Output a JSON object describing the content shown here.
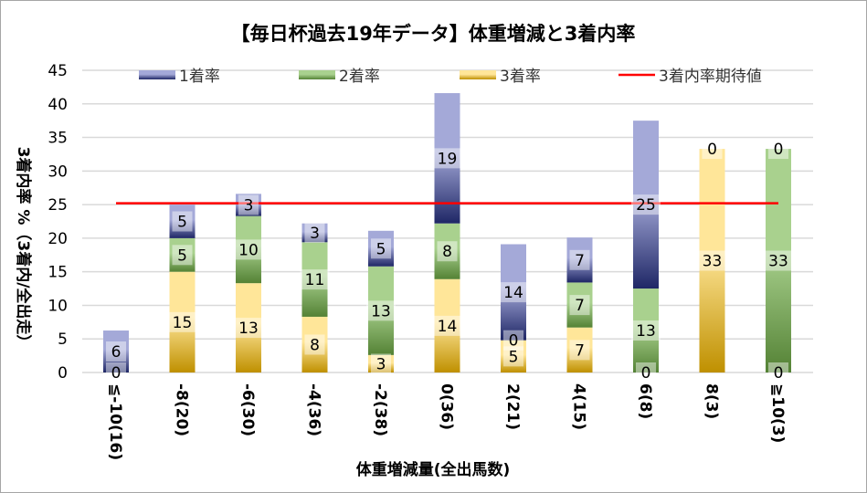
{
  "chart_data": {
    "type": "bar",
    "stacked": true,
    "title": "【毎日杯過去19年データ】体重増減と3着内率",
    "xlabel": "体重増減量(全出馬数)",
    "ylabel": "3着内率 %（3着内/全出走）",
    "ylim": [
      0,
      45
    ],
    "yticks": [
      0,
      5,
      10,
      15,
      20,
      25,
      30,
      35,
      40,
      45
    ],
    "grid": true,
    "legend_position": "top",
    "categories": [
      "≦-10(16)",
      "-8(20)",
      "-6(30)",
      "-4(36)",
      "-2(38)",
      "0(36)",
      "2(21)",
      "4(15)",
      "6(8)",
      "8(3)",
      "≧10(3)"
    ],
    "series": [
      {
        "name": "3着率",
        "color_light": "#ffe699",
        "color_dark": "#bf9000",
        "values": [
          0,
          15,
          13.3,
          8.3,
          2.6,
          13.9,
          4.8,
          6.7,
          0,
          33.3,
          0
        ],
        "labels": [
          "0",
          "15",
          "13",
          "8",
          "3",
          "14",
          "5",
          "7",
          "0",
          "33",
          "0"
        ]
      },
      {
        "name": "2着率",
        "color_light": "#a9d18e",
        "color_dark": "#548235",
        "values": [
          0,
          5,
          10,
          11.1,
          13.2,
          8.3,
          0,
          6.7,
          12.5,
          0,
          33.3
        ],
        "labels": [
          null,
          "5",
          "10",
          "11",
          "13",
          "8",
          "0",
          "7",
          "13",
          null,
          "33"
        ]
      },
      {
        "name": "1着率",
        "color_light": "#a4a9d8",
        "color_dark": "#1f2766",
        "values": [
          6.25,
          5,
          3.3,
          2.8,
          5.3,
          19.4,
          14.3,
          6.7,
          25,
          0,
          0
        ],
        "labels": [
          "6",
          "5",
          "3",
          "3",
          "5",
          "19",
          "14",
          "7",
          "25",
          "0",
          "0"
        ]
      }
    ],
    "reference_line": {
      "name": "3着内率期待値",
      "value": 25.2,
      "color": "#ff0000"
    },
    "legend_order": [
      "1着率",
      "2着率",
      "3着率",
      "3着内率期待値"
    ]
  }
}
